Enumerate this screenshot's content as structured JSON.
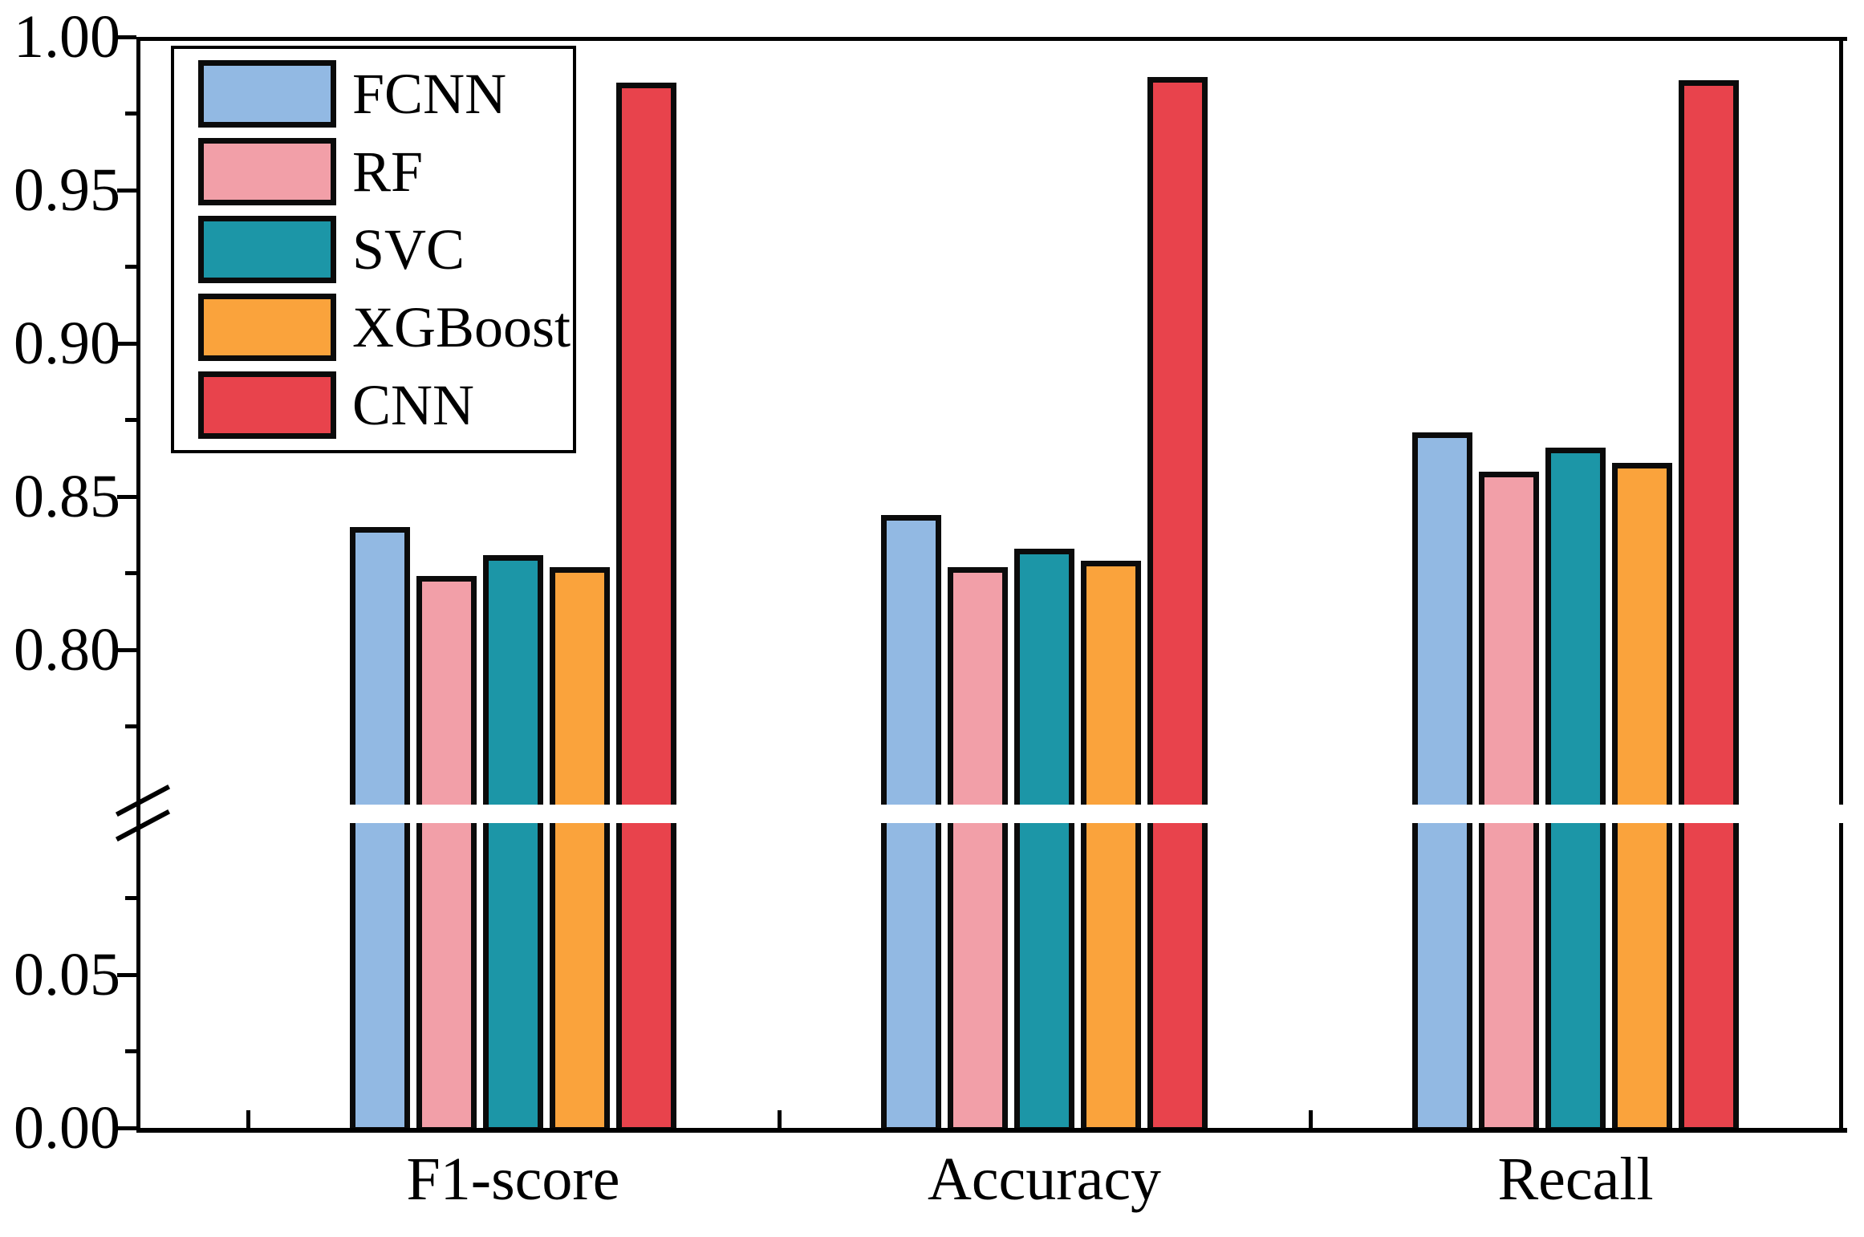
{
  "figure": {
    "background": "#ffffff",
    "axis_color": "#000000",
    "bar_border_color": "#0b0b0b"
  },
  "chart_data": {
    "type": "bar",
    "title": "",
    "xlabel": "",
    "ylabel": "",
    "grid": false,
    "categories": [
      "F1-score",
      "Accuracy",
      "Recall"
    ],
    "series": [
      {
        "name": "FCNN",
        "color": "#92b9e3",
        "values": [
          0.84,
          0.844,
          0.871
        ]
      },
      {
        "name": "RF",
        "color": "#f29fa8",
        "values": [
          0.824,
          0.827,
          0.858
        ]
      },
      {
        "name": "SVC",
        "color": "#1c96a7",
        "values": [
          0.831,
          0.833,
          0.866
        ]
      },
      {
        "name": "XGBoost",
        "color": "#faa33c",
        "values": [
          0.827,
          0.829,
          0.861
        ]
      },
      {
        "name": "CNN",
        "color": "#e8434c",
        "values": [
          0.985,
          0.987,
          0.986
        ]
      }
    ],
    "y_axis": {
      "broken_axis": true,
      "upper_segment": {
        "range": [
          0.775,
          1.0
        ],
        "major_tick_labels": [
          "1.00",
          "0.95",
          "0.90",
          "0.85",
          "0.80"
        ],
        "major_tick_values": [
          1.0,
          0.95,
          0.9,
          0.85,
          0.8
        ],
        "minor_tick_values": [
          0.975,
          0.925,
          0.875,
          0.825,
          0.775
        ]
      },
      "lower_segment": {
        "range": [
          0.0,
          0.09
        ],
        "major_tick_labels": [
          "0.05",
          "0.00"
        ],
        "major_tick_values": [
          0.05,
          0.0
        ],
        "minor_tick_values": [
          0.075,
          0.025
        ]
      }
    },
    "legend": {
      "position": "upper-left",
      "entries": [
        "FCNN",
        "RF",
        "SVC",
        "XGBoost",
        "CNN"
      ]
    }
  }
}
